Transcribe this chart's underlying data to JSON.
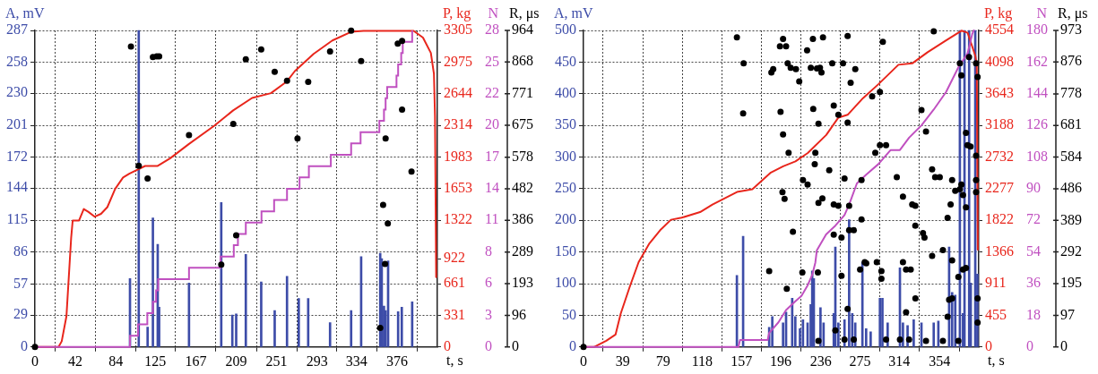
{
  "chart_data": [
    {
      "type": "line",
      "xlabel": "t, s",
      "ylabel": "A, mV",
      "y2label": "P, kg",
      "y3label": "N",
      "xlim": [
        0,
        418
      ],
      "xticks": [
        0,
        42,
        84,
        125,
        167,
        209,
        251,
        293,
        334,
        376
      ],
      "ylim": [
        0,
        287
      ],
      "yticks": [
        0,
        29,
        57,
        86,
        115,
        144,
        172,
        201,
        230,
        258,
        287
      ],
      "y2lim": [
        0,
        3305
      ],
      "y2ticks": [
        0,
        331,
        661,
        922,
        1322,
        1653,
        1983,
        2314,
        2644,
        2975,
        3305
      ],
      "y3lim": [
        0,
        28
      ],
      "y3ticks": [
        0,
        {
          "value": 2.8,
          "label": "3"
        },
        {
          "value": 5.6,
          "label": "6"
        },
        {
          "value": 8.4,
          "label": "8"
        },
        {
          "value": 11.2,
          "label": "11"
        },
        14,
        {
          "value": 16.8,
          "label": "17"
        },
        {
          "value": 19.6,
          "label": "20"
        },
        {
          "value": 22.4,
          "label": "22"
        },
        {
          "value": 25.2,
          "label": "25"
        },
        28
      ],
      "grid": true,
      "legend": false,
      "series": [
        {
          "type": "bar",
          "color": "#3d4ca8",
          "x": [
            98.7,
            107.8,
            117,
            122.5,
            127.5,
            129,
            160,
            193.5,
            205,
            209,
            219,
            235,
            249,
            261.8,
            274,
            283.8,
            306.5,
            328.4,
            338.8,
            358.6,
            360.2,
            362.5,
            364.2,
            366.8,
            377.2,
            381,
            391.8
          ],
          "values": [
            62,
            287,
            18,
            117,
            93,
            36,
            58,
            131,
            29,
            30,
            84,
            59,
            33,
            64,
            44,
            44,
            22,
            33,
            82,
            85,
            80,
            37,
            33,
            78,
            32,
            36,
            41
          ]
        },
        {
          "axis": "y2",
          "color": "#e8261c",
          "x": [
            0,
            24.5,
            27.8,
            32.7,
            37.6,
            39.2,
            45.8,
            50.7,
            55.6,
            62.1,
            68.6,
            75.2,
            83.3,
            91.5,
            98,
            114.4,
            127.5,
            140.5,
            160,
            186.3,
            205.9,
            225.5,
            245.1,
            261.4,
            269.9,
            289.4,
            308.9,
            328.4,
            341.3,
            393.3,
            403,
            411.2,
            414.4,
            415.5,
            416.7
          ],
          "values": [
            0,
            0,
            60,
            320,
            1140,
            1320,
            1320,
            1440,
            1410,
            1360,
            1390,
            1460,
            1650,
            1770,
            1810,
            1890,
            1890,
            1970,
            2120,
            2310,
            2470,
            2600,
            2650,
            2770,
            2880,
            3060,
            3200,
            3290,
            3300,
            3300,
            3230,
            3070,
            2850,
            2410,
            730
          ]
        },
        {
          "type": "step",
          "axis": "y3",
          "color": "#c050c0",
          "x": [
            0,
            98.7,
            107,
            116.7,
            122.5,
            125.8,
            128,
            160,
            192.8,
            206.5,
            210.8,
            219,
            235.3,
            248.4,
            261.8,
            274.8,
            284.5,
            307.3,
            328.4,
            338.2,
            357.7,
            362.5,
            364.2,
            365.8,
            375.5,
            377.2,
            380.4,
            382,
            391.8
          ],
          "values": [
            0,
            1,
            2,
            3,
            4,
            5,
            6,
            7,
            8,
            9,
            10,
            11,
            12,
            13,
            14,
            15,
            16,
            17,
            18,
            19,
            20,
            21,
            22,
            23,
            24,
            25,
            26,
            27,
            28
          ]
        }
      ]
    },
    {
      "type": "scatter",
      "ylabel": "R, μs",
      "xlim": [
        0,
        418
      ],
      "ylim": [
        0,
        964
      ],
      "yticks": [
        0,
        96,
        193,
        289,
        386,
        482,
        578,
        675,
        771,
        868,
        964
      ],
      "tick_labels": "y",
      "marker": "circle",
      "series": [
        {
          "color": "#000000",
          "x": [
            0,
            99.7,
            107.8,
            117,
            122.5,
            126.5,
            129,
            160,
            193.5,
            206,
            209,
            219,
            235,
            249,
            261.8,
            272.7,
            283.8,
            306.5,
            328.4,
            338.8,
            358.6,
            361.6,
            363.6,
            364.2,
            366.5,
            376.8,
            381.3,
            381.3,
            391.1
          ],
          "values": [
            0,
            915,
            552,
            513,
            883,
            885,
            885,
            645,
            251,
            679,
            340,
            876,
            906,
            838,
            811,
            635,
            807,
            900,
            963,
            871,
            58,
            433,
            253,
            635,
            376,
            924,
            932,
            723,
            534
          ]
        }
      ]
    },
    {
      "type": "line",
      "xlabel": "t, s",
      "ylabel": "A, mV",
      "y2label": "P, kg",
      "y3label": "N",
      "xlim": [
        0,
        393
      ],
      "xticks": [
        0,
        39,
        79,
        118,
        157,
        196,
        236,
        275,
        314,
        354
      ],
      "ylim": [
        0,
        500
      ],
      "yticks": [
        0,
        50,
        100,
        150,
        200,
        250,
        300,
        350,
        400,
        450,
        500
      ],
      "y2lim": [
        0,
        4554
      ],
      "y2ticks": [
        0,
        455,
        911,
        1366,
        1822,
        2277,
        2732,
        3188,
        3643,
        4098,
        4554
      ],
      "y3lim": [
        0,
        180
      ],
      "y3ticks": [
        0,
        18,
        36,
        54,
        72,
        90,
        108,
        126,
        144,
        162,
        180
      ],
      "grid": true,
      "legend": false,
      "series": [
        {
          "type": "bar",
          "color": "#3d4ca8",
          "x": [
            152.5,
            158.7,
            184.6,
            187.7,
            198.4,
            201.4,
            207.5,
            210.6,
            215.2,
            218.2,
            222.8,
            225.9,
            227.4,
            229,
            235.6,
            238.7,
            248.8,
            250.4,
            253.4,
            259.5,
            264.1,
            267.2,
            270.2,
            277.3,
            281,
            285.5,
            294.7,
            297.2,
            302.4,
            314.6,
            317.6,
            322.2,
            328.3,
            336,
            348.2,
            352.8,
            363.5,
            366.5,
            369.6,
            374.2,
            377.3,
            378.8,
            383.4,
            385,
            389.5,
            391.6
          ],
          "values": [
            113,
            175,
            31,
            48,
            38,
            55,
            77,
            48,
            29,
            43,
            38,
            67,
            120,
            108,
            62,
            38,
            53,
            158,
            38,
            43,
            201,
            53,
            38,
            134,
            29,
            24,
            77,
            77,
            38,
            125,
            38,
            34,
            43,
            38,
            38,
            41,
            158,
            86,
            82,
            500,
            53,
            500,
            500,
            101,
            500,
            115
          ]
        },
        {
          "axis": "y2",
          "color": "#e8261c",
          "x": [
            0,
            10.4,
            22.6,
            31.9,
            37,
            45.6,
            54.8,
            65.5,
            76.2,
            86.9,
            97.6,
            115.9,
            128.2,
            152.6,
            167.9,
            186.3,
            198.5,
            210.7,
            223,
            241.3,
            253.4,
            262.6,
            277.9,
            293.2,
            313.1,
            326.8,
            342.1,
            360.5,
            375.8,
            381.9,
            389.5,
            391,
            392
          ],
          "values": [
            0,
            0,
            90,
            180,
            480,
            850,
            1220,
            1490,
            1680,
            1830,
            1860,
            1940,
            2050,
            2230,
            2270,
            2510,
            2600,
            2670,
            2790,
            3050,
            3300,
            3340,
            3580,
            3780,
            4060,
            4080,
            4240,
            4410,
            4550,
            4520,
            4190,
            4060,
            1400
          ]
        },
        {
          "axis": "y3",
          "color": "#c050c0",
          "x": [
            0,
            154,
            155.6,
            183.1,
            184.6,
            193.8,
            201.4,
            210.6,
            216.7,
            222.8,
            227.4,
            230.5,
            232,
            241.2,
            250.4,
            259.5,
            264.1,
            271.8,
            281,
            293.2,
            305.4,
            314.6,
            323.7,
            336,
            348.2,
            360.5,
            372.7,
            381.9,
            386.5,
            388
          ],
          "values": [
            0,
            0,
            4,
            4,
            8,
            14,
            21,
            26,
            29,
            35,
            41,
            48,
            55,
            64,
            69,
            75,
            81,
            93,
            98,
            104,
            112,
            112,
            119,
            126,
            135,
            145,
            159,
            167,
            178,
            180
          ]
        }
      ]
    },
    {
      "type": "scatter",
      "ylabel": "R, μs",
      "xlim": [
        0,
        393
      ],
      "ylim": [
        0,
        973
      ],
      "yticks": [
        0,
        97,
        195,
        292,
        389,
        486,
        584,
        681,
        778,
        876,
        973
      ],
      "tick_labels": "y",
      "marker": "circle",
      "series": [
        {
          "color": "#000000",
          "x": [
            0,
            152.5,
            159.2,
            158.7,
            184.6,
            186.8,
            188.6,
            195.3,
            198.4,
            201.4,
            203,
            198.4,
            195.9,
            197.8,
            199.9,
            203.9,
            208.2,
            202.1,
            206,
            211.2,
            214.5,
            218.2,
            222.8,
            217.6,
            222.3,
            226,
            228.1,
            228.4,
            229.9,
            230.5,
            232.1,
            233.6,
            233.6,
            233,
            235.1,
            236.6,
            237.5,
            233.6,
            238.1,
            247.3,
            258,
            262.6,
            270.2,
            265.6,
            297.6,
            248.8,
            253.4,
            262.6,
            287,
            294.7,
            294.7,
            300.8,
            290.1,
            244.3,
            259.5,
            276.4,
            248.8,
            253.4,
            264.1,
            276.4,
            264.1,
            268.7,
            256.5,
            248.8,
            256.5,
            275,
            279.6,
            281.1,
            291.6,
            296.2,
            296.2,
            262.6,
            250.4,
            259.5,
            268.7,
            300.8,
            311.5,
            317.6,
            326.8,
            329.9,
            329.9,
            337.5,
            339,
            317.6,
            320.7,
            325.3,
            330,
            320.7,
            314.6,
            323.7,
            340.5,
            336,
            340.5,
            346.6,
            349.6,
            354.2,
            346.6,
            357.3,
            366.5,
            369.6,
            374.2,
            375.7,
            377.3,
            380.3,
            365,
            362,
            366.5,
            372.7,
            377.3,
            380.3,
            363.5,
            366.5,
            362,
            357.3,
            372.7,
            375.7,
            380.3,
            381.8,
            384.8,
            383.3,
            374.2,
            390.3,
            391.8,
            390.3,
            390.3,
            390.3,
            391.8,
            391.8,
            348.2
          ],
          "values": [
            0,
            952,
            872,
            718,
            233,
            844,
            854,
            924,
            947,
            924,
            872,
            653,
            723,
            476,
            455,
            597,
            354,
            179,
            858,
            854,
            816,
            513,
            499,
            229,
            912,
            858,
            947,
            732,
            562,
            597,
            856,
            686,
            443,
            229,
            858,
            844,
            457,
            19,
            952,
            872,
            872,
            956,
            854,
            812,
            938,
            742,
            714,
            690,
            770,
            784,
            620,
            620,
            597,
            543,
            518,
            513,
            438,
            434,
            434,
            392,
            359,
            359,
            336,
            345,
            219,
            238,
            261,
            257,
            261,
            210,
            233,
            117,
            51,
            23,
            23,
            23,
            522,
            462,
            438,
            434,
            373,
            350,
            336,
            261,
            238,
            238,
            149,
            107,
            23,
            23,
            19,
            728,
            662,
            546,
            522,
            522,
            280,
            298,
            513,
            480,
            485,
            499,
            467,
            429,
            438,
            397,
            266,
            215,
            238,
            243,
            145,
            149,
            93,
            19,
            19,
            835,
            658,
            620,
            616,
            891,
            872,
            872,
            830,
            588,
            513,
            476,
            149,
            75,
            970
          ]
        }
      ]
    }
  ]
}
